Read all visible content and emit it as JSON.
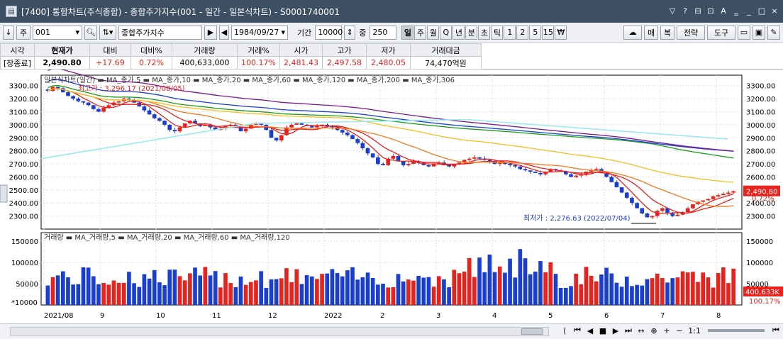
{
  "window": {
    "title": "[7400] 통합차트(주식종합) - 종합주가지수(001 - 일간 - 일본식차트) - S0001740001",
    "controls": [
      "▽",
      "?",
      "⊟",
      "⊡",
      "A",
      "‗",
      "_",
      "□",
      "×"
    ]
  },
  "toolbar": {
    "arrow_icon": "↓",
    "type_btn": "주",
    "code": "001",
    "name": "종합주가지수",
    "date": "1984/09/27",
    "period_label": "기간",
    "period_value": "10000",
    "count_label": "중",
    "count_value": "250",
    "periods": [
      "일",
      "주",
      "월",
      "Q",
      "년",
      "분",
      "초",
      "틱",
      "1",
      "2",
      "5",
      "15",
      "₩"
    ],
    "selected_period": "일",
    "right_buttons": [
      "매",
      "복",
      "전략",
      "도구"
    ]
  },
  "quote": {
    "headers": [
      "시각",
      "현재가",
      "대비",
      "대비%",
      "거래량",
      "거래%",
      "시가",
      "고가",
      "저가",
      "거래대금"
    ],
    "values": [
      "[장종료]",
      "2,490.80",
      "+17.69",
      "0.72%",
      "400,633,000",
      "100.17%",
      "2,481.43",
      "2,497.58",
      "2,480.05",
      "74,470억원"
    ]
  },
  "chart_data": [
    {
      "type": "candlestick",
      "title": "일본식차트(일간)",
      "legend": [
        "MA_종가,5",
        "MA_종가,10",
        "MA_종가,20",
        "MA_종가,60",
        "MA_종가,120",
        "MA_종가,200",
        "MA_종가,306"
      ],
      "x_labels": [
        "2021/08",
        "9",
        "10",
        "11",
        "12",
        "2022",
        "2",
        "3",
        "4",
        "5",
        "6",
        "7",
        "8"
      ],
      "ylim": [
        2200,
        3380
      ],
      "y_ticks": [
        3300,
        3200,
        3100,
        3000,
        2900,
        2800,
        2700,
        2600,
        2500,
        2400,
        2300
      ],
      "annotations": [
        "최고가 : 3,296.17 (2021/08/05)",
        "최저가 : 2,276.63 (2022/07/04)"
      ],
      "last_price": "2,490.80",
      "last_change_pct": "0.72%",
      "close_series": [
        3260,
        3290,
        3280,
        3250,
        3220,
        3200,
        3180,
        3170,
        3150,
        3120,
        3100,
        3130,
        3150,
        3170,
        3180,
        3200,
        3190,
        3170,
        3140,
        3110,
        3080,
        3050,
        3030,
        3000,
        2960,
        2950,
        2980,
        3010,
        3030,
        3010,
        2990,
        3000,
        2980,
        2960,
        2970,
        2990,
        3000,
        2980,
        2950,
        2970,
        3000,
        3010,
        3000,
        2960,
        2900,
        2880,
        2920,
        2980,
        3000,
        3010,
        3000,
        2990,
        2980,
        2990,
        3000,
        2990,
        2980,
        2960,
        2940,
        2920,
        2890,
        2860,
        2820,
        2780,
        2750,
        2700,
        2690,
        2740,
        2760,
        2720,
        2690,
        2700,
        2720,
        2710,
        2690,
        2680,
        2700,
        2710,
        2690,
        2680,
        2700,
        2710,
        2730,
        2740,
        2750,
        2740,
        2730,
        2720,
        2700,
        2710,
        2700,
        2690,
        2680,
        2660,
        2650,
        2640,
        2630,
        2620,
        2640,
        2660,
        2650,
        2640,
        2620,
        2600,
        2610,
        2620,
        2640,
        2650,
        2660,
        2630,
        2600,
        2560,
        2520,
        2480,
        2440,
        2400,
        2360,
        2320,
        2290,
        2300,
        2340,
        2360,
        2320,
        2300,
        2310,
        2330,
        2360,
        2390,
        2410,
        2420,
        2430,
        2450,
        2460,
        2470,
        2480,
        2490
      ]
    },
    {
      "type": "bar",
      "title": "거래량",
      "legend": [
        "MA_거래량,5",
        "MA_거래량,20",
        "MA_거래량,60",
        "MA_거래량,120"
      ],
      "ylim": [
        0,
        170000
      ],
      "y_ticks": [
        150000,
        100000,
        50000
      ],
      "unit_label": "*10000",
      "last_volume": "400,633K",
      "last_volume_pct": "100.17%"
    }
  ],
  "scrollbar": {
    "zoom_label": "1:1",
    "nav_icons": [
      "⟨",
      "⏮",
      "◀",
      "■",
      "▶",
      "⏭",
      "↔",
      "⊕",
      "+",
      "−"
    ]
  }
}
